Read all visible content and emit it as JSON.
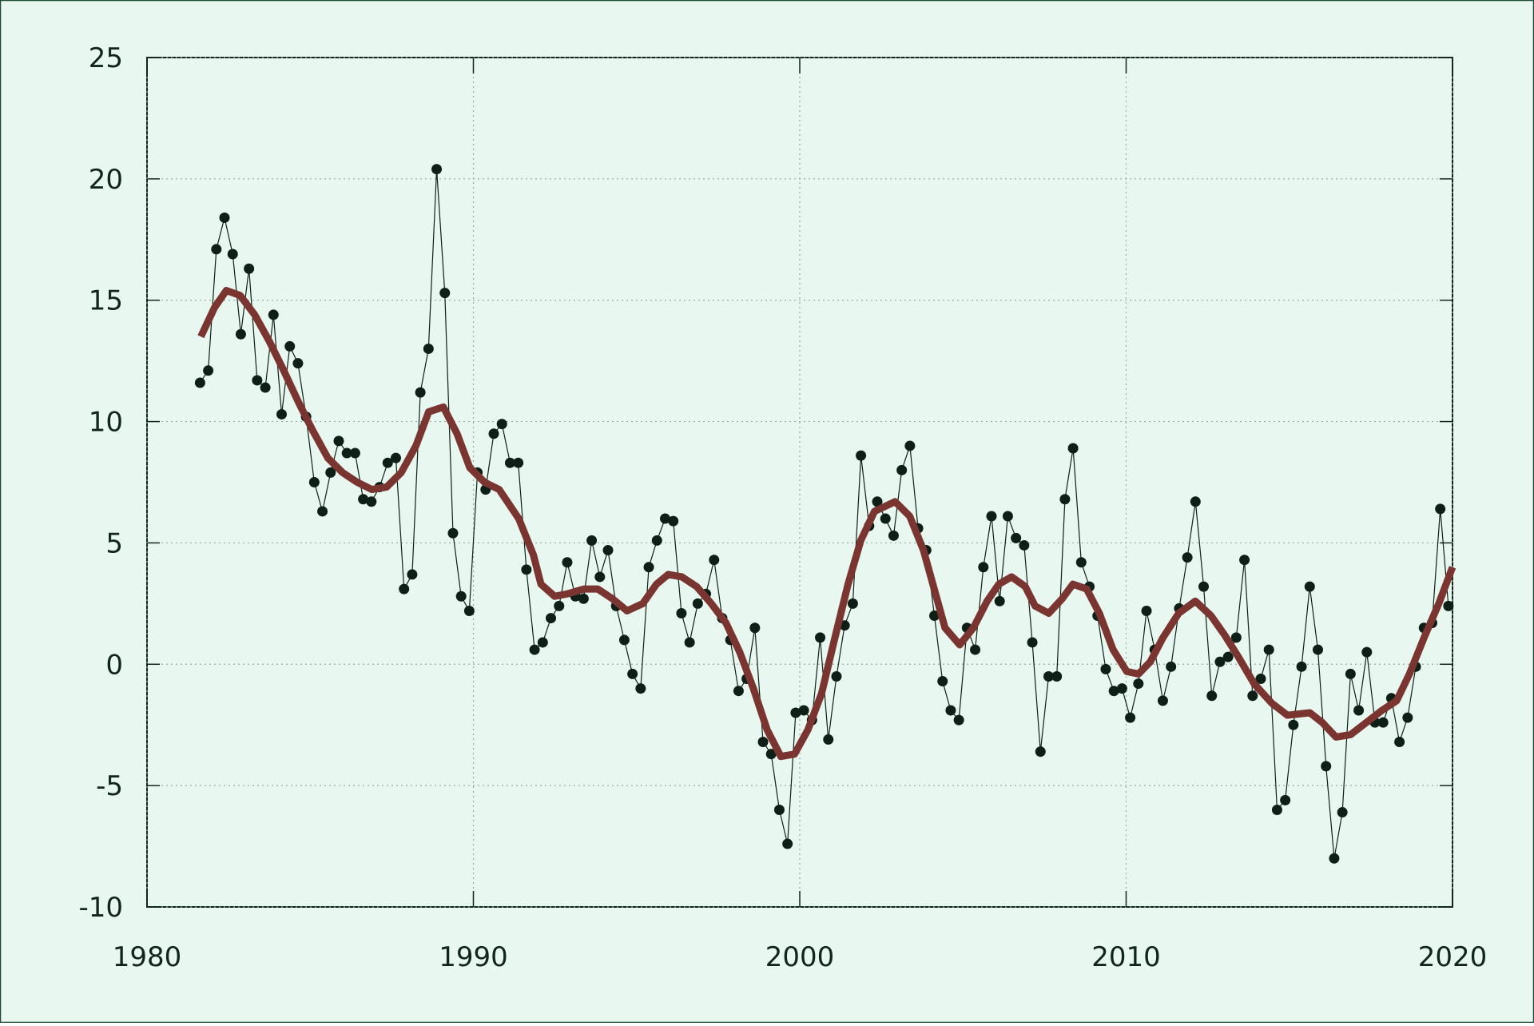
{
  "chart_data": {
    "type": "line",
    "xlim": [
      1980,
      2020
    ],
    "xticks": [
      1980,
      1990,
      2000,
      2010,
      2020
    ],
    "ylim": [
      -10,
      25
    ],
    "yticks": [
      -10,
      -5,
      0,
      5,
      10,
      15,
      20,
      25
    ],
    "grid": true,
    "background": "#e8f8f0",
    "series": [
      {
        "color": "#0d1f17",
        "markers": true,
        "linewidth": 1.2,
        "x": [
          1981.625,
          1981.875,
          1982.125,
          1982.375,
          1982.625,
          1982.875,
          1983.125,
          1983.375,
          1983.625,
          1983.875,
          1984.125,
          1984.375,
          1984.625,
          1984.875,
          1985.125,
          1985.375,
          1985.625,
          1985.875,
          1986.125,
          1986.375,
          1986.625,
          1986.875,
          1987.125,
          1987.375,
          1987.625,
          1987.875,
          1988.125,
          1988.375,
          1988.625,
          1988.875,
          1989.125,
          1989.375,
          1989.625,
          1989.875,
          1990.125,
          1990.375,
          1990.625,
          1990.875,
          1991.125,
          1991.375,
          1991.625,
          1991.875,
          1992.125,
          1992.375,
          1992.625,
          1992.875,
          1993.125,
          1993.375,
          1993.625,
          1993.875,
          1994.125,
          1994.375,
          1994.625,
          1994.875,
          1995.125,
          1995.375,
          1995.625,
          1995.875,
          1996.125,
          1996.375,
          1996.625,
          1996.875,
          1997.125,
          1997.375,
          1997.625,
          1997.875,
          1998.125,
          1998.375,
          1998.625,
          1998.875,
          1999.125,
          1999.375,
          1999.625,
          1999.875,
          2000.125,
          2000.375,
          2000.625,
          2000.875,
          2001.125,
          2001.375,
          2001.625,
          2001.875,
          2002.125,
          2002.375,
          2002.625,
          2002.875,
          2003.125,
          2003.375,
          2003.625,
          2003.875,
          2004.125,
          2004.375,
          2004.625,
          2004.875,
          2005.125,
          2005.375,
          2005.625,
          2005.875,
          2006.125,
          2006.375,
          2006.625,
          2006.875,
          2007.125,
          2007.375,
          2007.625,
          2007.875,
          2008.125,
          2008.375,
          2008.625,
          2008.875,
          2009.125,
          2009.375,
          2009.625,
          2009.875,
          2010.125,
          2010.375,
          2010.625,
          2010.875,
          2011.125,
          2011.375,
          2011.625,
          2011.875,
          2012.125,
          2012.375,
          2012.625,
          2012.875,
          2013.125,
          2013.375,
          2013.625,
          2013.875,
          2014.125,
          2014.375,
          2014.625,
          2014.875,
          2015.125,
          2015.375,
          2015.625,
          2015.875,
          2016.125,
          2016.375,
          2016.625,
          2016.875,
          2017.125,
          2017.375,
          2017.625,
          2017.875,
          2018.125,
          2018.375,
          2018.625,
          2018.875,
          2019.125,
          2019.375,
          2019.625,
          2019.875
        ],
        "values": [
          11.6,
          12.1,
          17.1,
          18.4,
          16.9,
          13.6,
          16.3,
          11.7,
          11.4,
          14.4,
          10.3,
          13.1,
          12.4,
          10.2,
          7.5,
          6.3,
          7.9,
          9.2,
          8.7,
          8.7,
          6.8,
          6.7,
          7.3,
          8.3,
          8.5,
          3.1,
          3.7,
          11.2,
          13.0,
          20.4,
          15.3,
          5.4,
          2.8,
          2.2,
          7.9,
          7.2,
          9.5,
          9.9,
          8.3,
          8.3,
          3.9,
          0.6,
          0.9,
          1.9,
          2.4,
          4.2,
          2.8,
          2.7,
          5.1,
          3.6,
          4.7,
          2.4,
          1.0,
          -0.4,
          -1.0,
          4.0,
          5.1,
          6.0,
          5.9,
          2.1,
          0.9,
          2.5,
          2.9,
          4.3,
          1.9,
          1.0,
          -1.1,
          -0.6,
          1.5,
          -3.2,
          -3.7,
          -6.0,
          -7.4,
          -2.0,
          -1.9,
          -2.3,
          1.1,
          -3.1,
          -0.5,
          1.6,
          2.5,
          8.6,
          5.7,
          6.7,
          6.0,
          5.3,
          8.0,
          9.0,
          5.6,
          4.7,
          2.0,
          -0.7,
          -1.9,
          -2.3,
          1.5,
          0.6,
          4.0,
          6.1,
          2.6,
          6.1,
          5.2,
          4.9,
          0.9,
          -3.6,
          -0.5,
          -0.5,
          6.8,
          8.9,
          4.2,
          3.2,
          2.0,
          -0.2,
          -1.1,
          -1.0,
          -2.2,
          -0.8,
          2.2,
          0.6,
          -1.5,
          -0.1,
          2.3,
          4.4,
          6.7,
          3.2,
          -1.3,
          0.1,
          0.3,
          1.1,
          4.3,
          -1.3,
          -0.6,
          0.6,
          -6.0,
          -5.6,
          -2.5,
          -0.1,
          3.2,
          0.6,
          -4.2,
          -8.0,
          -6.1,
          -0.4,
          -1.9,
          0.5,
          -2.4,
          -2.4,
          -1.4,
          -3.2,
          -2.2,
          -0.1,
          1.5,
          1.7,
          6.4,
          2.4
        ]
      },
      {
        "color": "#7b3530",
        "markers": false,
        "linewidth": 9,
        "x": [
          1981.65,
          1982.07,
          1982.43,
          1982.85,
          1983.3,
          1983.75,
          1984.19,
          1984.64,
          1985.09,
          1985.54,
          1985.99,
          1986.44,
          1986.89,
          1987.34,
          1987.79,
          1988.24,
          1988.63,
          1989.08,
          1989.5,
          1989.89,
          1990.34,
          1990.79,
          1991.39,
          1991.84,
          1992.07,
          1992.49,
          1992.88,
          1993.39,
          1993.81,
          1994.26,
          1994.71,
          1995.19,
          1995.61,
          1995.97,
          1996.39,
          1996.84,
          1997.29,
          1997.74,
          1998.16,
          1998.58,
          1999.0,
          1999.42,
          1999.84,
          2000.25,
          2000.67,
          2001.06,
          2001.48,
          2001.87,
          2002.29,
          2002.92,
          2003.37,
          2003.79,
          2004.12,
          2004.45,
          2004.9,
          2005.32,
          2005.74,
          2006.1,
          2006.49,
          2006.91,
          2007.21,
          2007.63,
          2008.04,
          2008.37,
          2008.79,
          2009.18,
          2009.6,
          2010.02,
          2010.38,
          2010.74,
          2011.13,
          2011.61,
          2012.12,
          2012.6,
          2013.02,
          2013.44,
          2013.92,
          2014.46,
          2014.94,
          2015.63,
          2016.01,
          2016.43,
          2016.88,
          2017.36,
          2017.84,
          2018.29,
          2018.68,
          2019.13,
          2019.58,
          2020.0
        ],
        "values": [
          13.5,
          14.7,
          15.4,
          15.2,
          14.4,
          13.3,
          12.1,
          10.8,
          9.6,
          8.5,
          7.9,
          7.5,
          7.2,
          7.3,
          7.9,
          9.0,
          10.4,
          10.6,
          9.5,
          8.1,
          7.5,
          7.2,
          6.0,
          4.5,
          3.3,
          2.8,
          2.9,
          3.1,
          3.1,
          2.7,
          2.2,
          2.5,
          3.3,
          3.7,
          3.6,
          3.2,
          2.5,
          1.7,
          0.5,
          -1.0,
          -2.7,
          -3.8,
          -3.7,
          -2.7,
          -1.2,
          1.0,
          3.3,
          5.1,
          6.3,
          6.7,
          6.1,
          4.7,
          3.1,
          1.5,
          0.8,
          1.5,
          2.6,
          3.3,
          3.6,
          3.2,
          2.4,
          2.1,
          2.7,
          3.3,
          3.1,
          2.1,
          0.6,
          -0.3,
          -0.4,
          0.1,
          1.1,
          2.1,
          2.6,
          2.0,
          1.2,
          0.3,
          -0.8,
          -1.6,
          -2.1,
          -2.0,
          -2.4,
          -3.0,
          -2.9,
          -2.4,
          -1.9,
          -1.5,
          -0.4,
          1.1,
          2.5,
          4.0
        ]
      }
    ]
  }
}
